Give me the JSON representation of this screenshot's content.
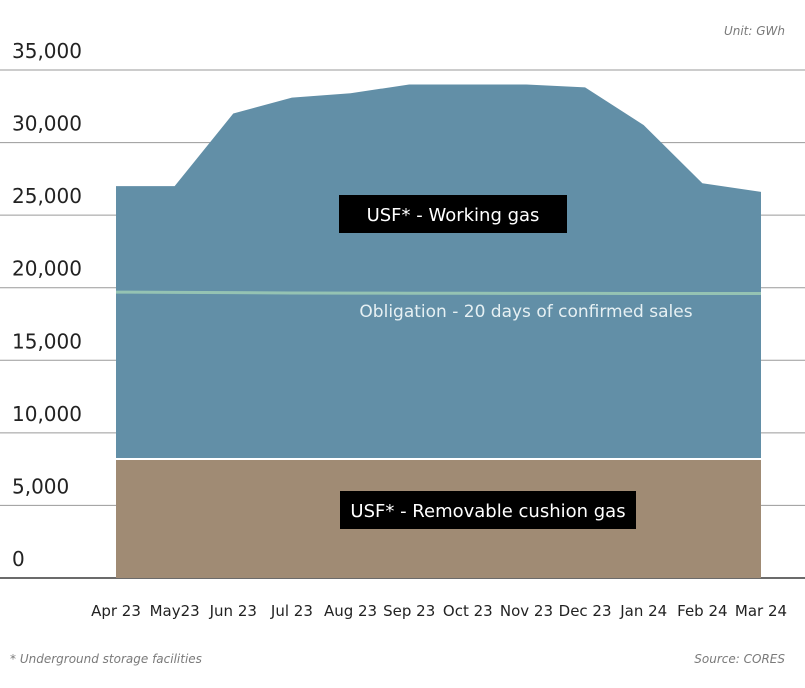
{
  "unit_note": "Unit: GWh",
  "footnote": "* Underground storage facilities",
  "source": "Source: CORES",
  "colors": {
    "working_gas": "#628fa7",
    "cushion_gas": "#a08b74",
    "obligation_line": "#95c3b3",
    "grid": "#9a9a9a",
    "label_box": "#000000",
    "label_text": "#ffffff",
    "obligation_text": "#e6f0f3"
  },
  "chart_data": {
    "type": "area",
    "x": [
      "Apr 23",
      "May23",
      "Jun 23",
      "Jul 23",
      "Aug 23",
      "Sep 23",
      "Oct 23",
      "Nov 23",
      "Dec 23",
      "Jan 24",
      "Feb 24",
      "Mar 24"
    ],
    "ylim": [
      0,
      35000
    ],
    "yticks": [
      0,
      5000,
      10000,
      15000,
      20000,
      25000,
      30000,
      35000
    ],
    "ytick_labels": [
      "0",
      "5,000",
      "10,000",
      "15,000",
      "20,000",
      "25,000",
      "30,000",
      "35,000"
    ],
    "grid": true,
    "series": [
      {
        "name": "USF* - Removable cushion gas",
        "values": [
          8200,
          8200,
          8200,
          8200,
          8200,
          8200,
          8200,
          8200,
          8200,
          8200,
          8200,
          8200
        ]
      },
      {
        "name": "USF* - Working gas",
        "total_values": [
          27000,
          27000,
          32000,
          33100,
          33400,
          34000,
          34000,
          34000,
          33800,
          31200,
          27200,
          26600
        ]
      }
    ],
    "obligation": {
      "name": "Obligation - 20 days of confirmed sales",
      "values": [
        19700,
        19680,
        19660,
        19640,
        19630,
        19620,
        19620,
        19610,
        19610,
        19600,
        19600,
        19600
      ]
    }
  }
}
